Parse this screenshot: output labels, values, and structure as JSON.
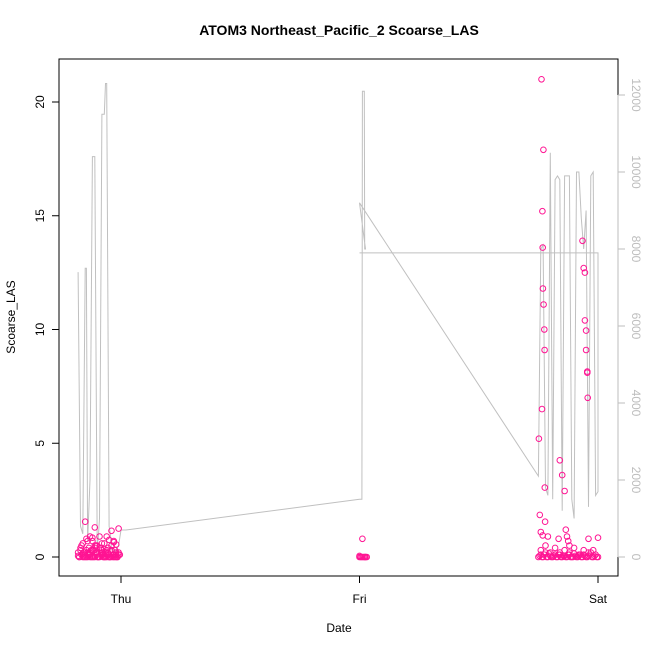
{
  "chart_data": {
    "type": "scatter",
    "title": "ATOM3 Northeast_Pacific_2 Scoarse_LAS",
    "xlabel": "Date",
    "ylabel": "Scoarse_LAS",
    "x_ticks": [
      "Thu",
      "Fri",
      "Sat"
    ],
    "ylim": [
      0,
      21.5
    ],
    "y_ticks": [
      0,
      5,
      10,
      15,
      20
    ],
    "y2lim": [
      0,
      12200
    ],
    "y2_ticks": [
      0,
      2000,
      4000,
      6000,
      8000,
      10000,
      12000
    ],
    "grid": false,
    "colors": {
      "points": "#ff1493",
      "line": "#c0c0c0",
      "secondary_axis": "#bdbdbd"
    },
    "secondary_line": {
      "x_days": [
        -0.18,
        -0.17,
        -0.16,
        -0.15,
        -0.145,
        -0.14,
        -0.13,
        -0.12,
        -0.11,
        -0.1,
        -0.095,
        -0.09,
        -0.08,
        -0.07,
        -0.065,
        -0.06,
        -0.05,
        -0.045,
        -0.04,
        -0.035,
        -0.03,
        -0.02,
        -0.01,
        0.0,
        0.02,
        1.0,
        1.01,
        1.012,
        1.014,
        1.02,
        1.022,
        1.025,
        1.0,
        1.0,
        1.75,
        1.75,
        1.76,
        1.77,
        1.78,
        1.79,
        1.8,
        1.81,
        1.82,
        1.83,
        1.84,
        1.85,
        1.86,
        1.87,
        1.88,
        1.89,
        1.9,
        1.91,
        1.92,
        1.93,
        1.94,
        1.95,
        1.96,
        1.97,
        1.98,
        1.99,
        2.0,
        2.0,
        1.0
      ],
      "y2_values": [
        7400,
        800,
        600,
        7500,
        7500,
        400,
        2000,
        10400,
        10400,
        300,
        500,
        1000,
        11500,
        11500,
        12300,
        12300,
        800,
        600,
        200,
        200,
        100,
        200,
        300,
        700,
        700,
        1500,
        1500,
        12100,
        12100,
        12100,
        8000,
        8000,
        9200,
        9200,
        2100,
        2100,
        8000,
        8100,
        1800,
        1600,
        10500,
        1500,
        9800,
        9900,
        9800,
        1200,
        9900,
        9900,
        9900,
        1500,
        1000,
        10000,
        10000,
        8800,
        8000,
        9000,
        1300,
        9900,
        10000,
        1600,
        1700,
        7900,
        7900
      ]
    },
    "series": [
      {
        "name": "",
        "x_days": [
          -0.18,
          -0.175,
          -0.17,
          -0.165,
          -0.16,
          -0.155,
          -0.15,
          -0.145,
          -0.14,
          -0.135,
          -0.13,
          -0.125,
          -0.12,
          -0.115,
          -0.11,
          -0.105,
          -0.1,
          -0.095,
          -0.09,
          -0.085,
          -0.08,
          -0.075,
          -0.07,
          -0.065,
          -0.06,
          -0.055,
          -0.05,
          -0.045,
          -0.04,
          -0.035,
          -0.03,
          -0.025,
          -0.02,
          -0.015,
          -0.01,
          -0.18,
          -0.17,
          -0.16,
          -0.15,
          -0.14,
          -0.13,
          -0.12,
          -0.11,
          -0.1,
          -0.09,
          -0.08,
          -0.07,
          -0.06,
          -0.05,
          -0.04,
          -0.03,
          -0.02,
          -0.01,
          -0.175,
          -0.165,
          -0.155,
          -0.145,
          -0.135,
          -0.125,
          -0.115,
          -0.105,
          -0.095,
          -0.085,
          -0.075,
          -0.065,
          -0.055,
          -0.045,
          -0.035,
          -0.025,
          -0.015,
          -0.005,
          -0.15,
          -0.145,
          -0.14,
          -0.13,
          -0.12,
          -0.11,
          -0.1,
          -0.09,
          -0.08,
          -0.07,
          -0.06,
          -0.05,
          -0.04,
          -0.03,
          -0.02,
          -0.15,
          -0.11,
          -0.06,
          -0.04,
          -0.14,
          -0.12,
          -0.08,
          -0.05,
          -0.03,
          -0.01,
          -0.13,
          -0.1,
          -0.07,
          -0.02,
          1.0,
          1.005,
          1.01,
          1.015,
          1.02,
          1.025,
          1.03,
          1.0,
          1.012,
          1.024,
          1.75,
          1.76,
          1.77,
          1.78,
          1.79,
          1.8,
          1.81,
          1.82,
          1.83,
          1.84,
          1.85,
          1.86,
          1.87,
          1.88,
          1.89,
          1.9,
          1.91,
          1.92,
          1.93,
          1.94,
          1.95,
          1.96,
          1.97,
          1.98,
          1.99,
          2.0,
          1.755,
          1.765,
          1.775,
          1.785,
          1.795,
          1.805,
          1.815,
          1.825,
          1.835,
          1.845,
          1.855,
          1.865,
          1.875,
          1.885,
          1.895,
          1.905,
          1.915,
          1.925,
          1.935,
          1.945,
          1.955,
          1.965,
          1.975,
          1.985,
          1.995,
          1.76,
          1.78,
          1.8,
          1.82,
          1.84,
          1.86,
          1.88,
          1.9,
          1.92,
          1.94,
          1.96,
          1.98,
          1.76,
          1.79,
          1.88,
          1.96,
          2.0,
          1.763,
          1.771,
          1.767,
          1.768,
          1.769,
          1.772,
          1.775,
          1.776,
          1.778,
          1.765,
          1.752,
          1.756,
          1.768,
          1.777,
          1.835,
          1.84,
          1.85,
          1.86,
          1.865,
          1.87,
          1.875,
          1.935,
          1.94,
          1.945,
          1.945,
          1.95,
          1.95,
          1.955,
          1.955,
          1.957
        ],
        "y_values": [
          0.05,
          0.0,
          0.3,
          0.1,
          0.6,
          0.0,
          0.2,
          0.8,
          0.0,
          0.4,
          0.1,
          0.0,
          0.7,
          0.3,
          0.0,
          0.5,
          0.2,
          0.0,
          0.9,
          0.1,
          0.3,
          0.0,
          0.6,
          0.2,
          0.0,
          0.4,
          0.1,
          0.0,
          0.3,
          0.0,
          0.7,
          0.0,
          0.2,
          0.0,
          0.1,
          0.2,
          0.4,
          0.0,
          0.1,
          0.2,
          0.0,
          0.3,
          0.5,
          0.0,
          0.2,
          0.1,
          0.0,
          0.3,
          0.0,
          0.5,
          0.1,
          0.0,
          0.2,
          0.0,
          0.5,
          0.2,
          0.0,
          0.1,
          0.3,
          0.0,
          0.2,
          0.0,
          0.4,
          0.1,
          0.0,
          0.2,
          0.0,
          0.1,
          0.3,
          0.0,
          0.1,
          0.0,
          0.3,
          0.1,
          0.2,
          0.0,
          0.4,
          0.1,
          0.0,
          0.2,
          0.0,
          0.1,
          0.0,
          0.3,
          0.0,
          0.1,
          1.55,
          1.3,
          0.9,
          1.15,
          0.7,
          0.85,
          0.6,
          0.75,
          0.65,
          1.25,
          0.9,
          0.5,
          0.35,
          0.55,
          0.0,
          0.0,
          0.0,
          0.0,
          0.0,
          0.0,
          0.0,
          0.05,
          0.8,
          0.0,
          0.0,
          0.1,
          0.0,
          0.2,
          0.0,
          0.05,
          0.0,
          0.1,
          0.0,
          0.2,
          0.0,
          0.05,
          0.0,
          0.1,
          0.0,
          0.15,
          0.0,
          0.05,
          0.0,
          0.1,
          0.0,
          0.05,
          0.2,
          0.0,
          0.1,
          0.0,
          0.05,
          0.0,
          0.1,
          0.0,
          0.15,
          0.0,
          0.05,
          0.0,
          0.1,
          0.0,
          0.05,
          0.0,
          0.1,
          0.0,
          0.0,
          0.05,
          0.0,
          0.1,
          0.0,
          0.05,
          0.0,
          0.1,
          0.0,
          0.05,
          0.0,
          0.3,
          0.5,
          0.2,
          0.4,
          0.1,
          0.3,
          0.2,
          0.4,
          0.1,
          0.3,
          0.2,
          0.3,
          1.1,
          0.9,
          0.5,
          0.8,
          0.85,
          21.0,
          17.9,
          15.2,
          13.6,
          11.8,
          11.1,
          10.0,
          9.1,
          1.55,
          6.5,
          5.2,
          1.85,
          0.95,
          3.05,
          0.8,
          4.25,
          3.6,
          2.9,
          1.2,
          0.9,
          0.7,
          13.9,
          12.7,
          12.5,
          10.4,
          9.95,
          9.1,
          8.1,
          8.15,
          7.0
        ]
      }
    ]
  }
}
